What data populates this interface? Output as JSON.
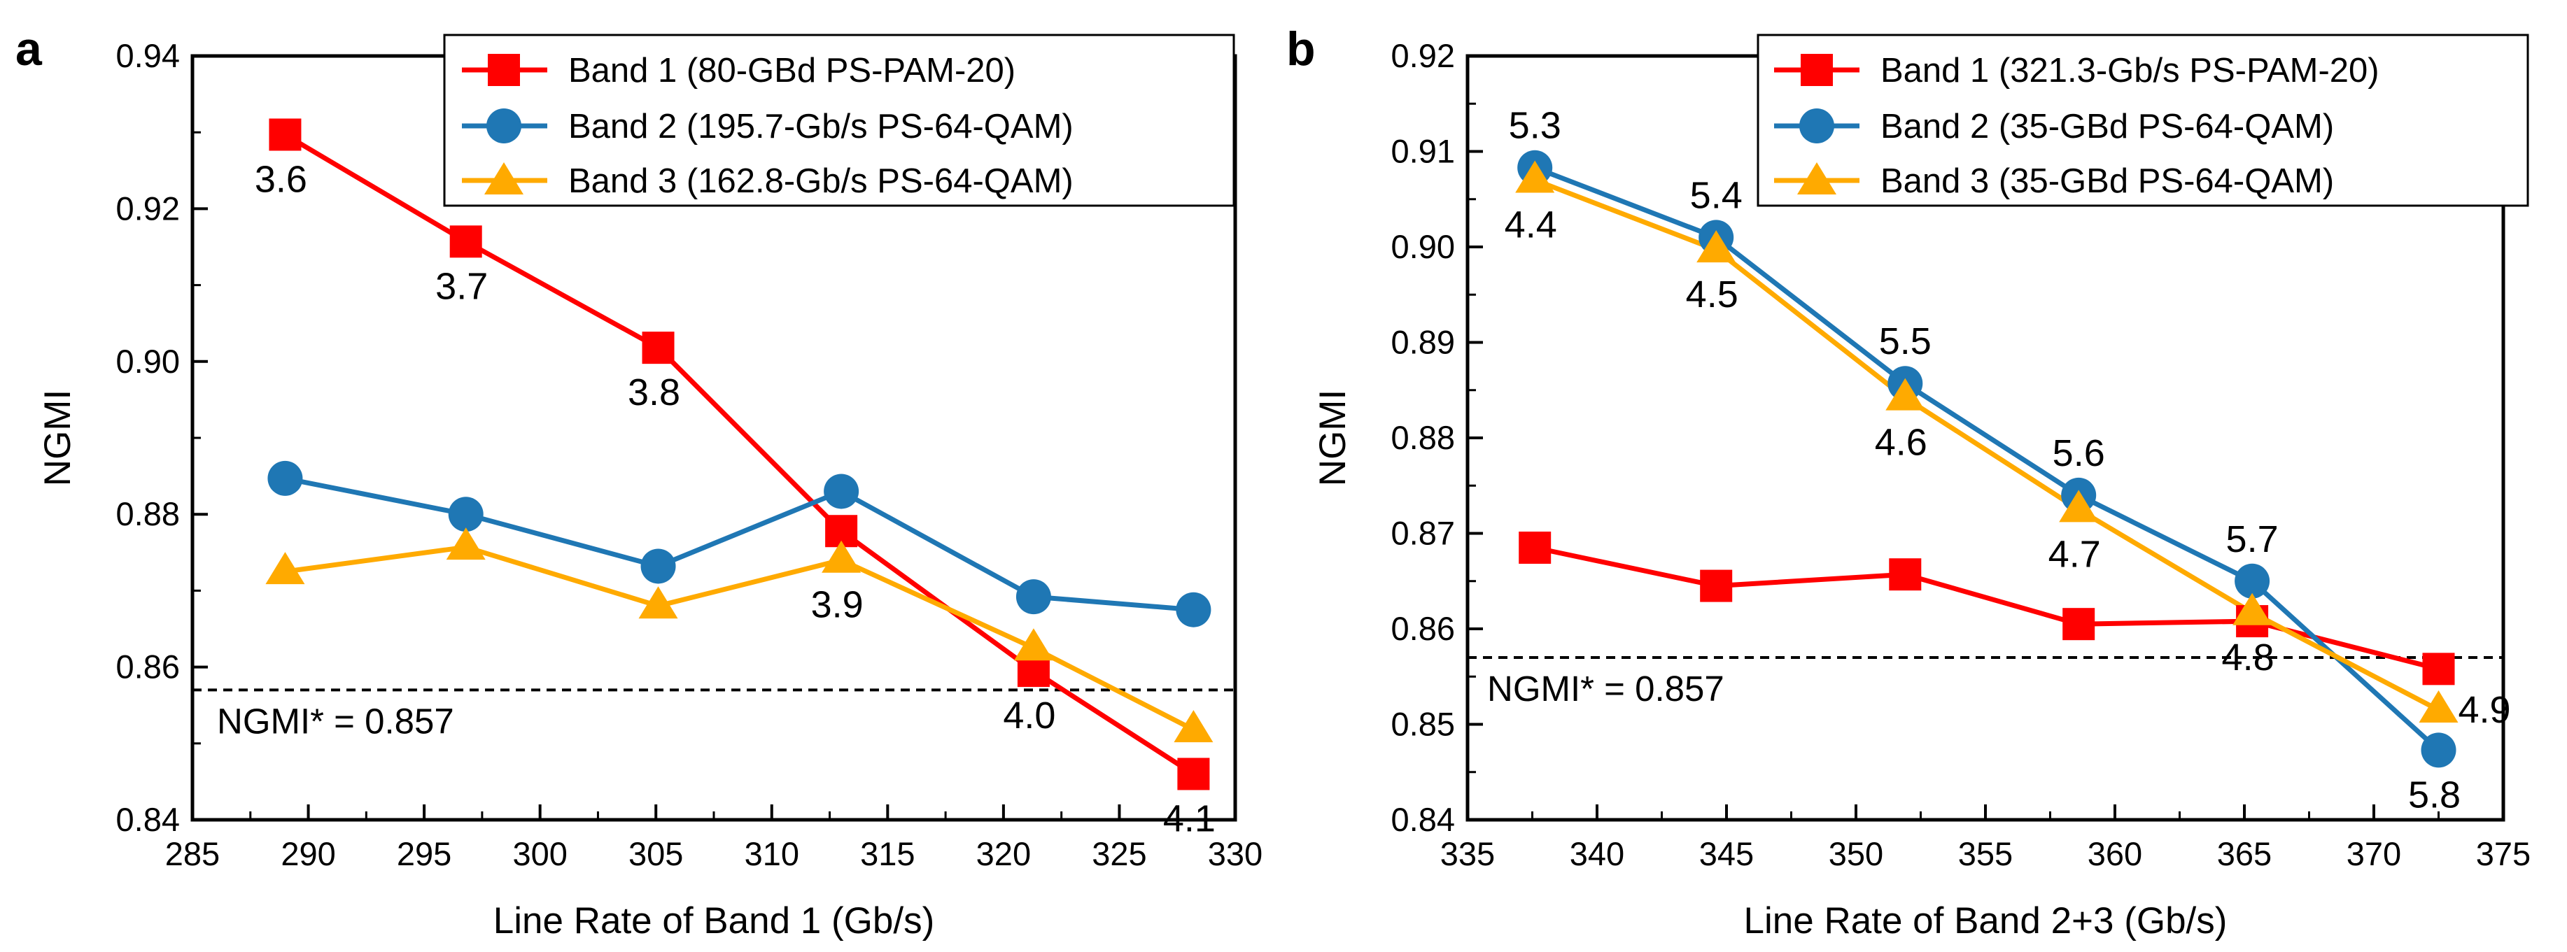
{
  "chart_data": [
    {
      "type": "line",
      "panel": "a",
      "xlabel": "Line Rate of Band 1 (Gb/s)",
      "ylabel": "NGMI",
      "xlim": [
        285,
        330
      ],
      "ylim": [
        0.84,
        0.94
      ],
      "xticks": [
        285,
        290,
        295,
        300,
        305,
        310,
        315,
        320,
        325,
        330
      ],
      "yticks": [
        0.84,
        0.86,
        0.88,
        0.9,
        0.92,
        0.94
      ],
      "ytick_labels": [
        "0.84",
        "0.86",
        "0.88",
        "0.90",
        "0.92",
        "0.94"
      ],
      "legend_position": "top-right",
      "threshold": {
        "value": 0.857,
        "label": "NGMI* = 0.857"
      },
      "series": [
        {
          "name": "Band 1 (80-GBd PS-PAM-20)",
          "color": "#ff0000",
          "marker": "square",
          "x": [
            289.0,
            296.8,
            305.1,
            313.0,
            321.3,
            328.2
          ],
          "y": [
            0.9297,
            0.9157,
            0.9018,
            0.8778,
            0.8595,
            0.846
          ]
        },
        {
          "name": "Band 2 (195.7-Gb/s PS-64-QAM)",
          "color": "#1f77b4",
          "marker": "circle",
          "x": [
            289.0,
            296.8,
            305.1,
            313.0,
            321.3,
            328.2
          ],
          "y": [
            0.8847,
            0.88,
            0.8732,
            0.883,
            0.8692,
            0.8675
          ]
        },
        {
          "name": "Band 3 (162.8-Gb/s PS-64-QAM)",
          "color": "#ffaa00",
          "marker": "triangle",
          "x": [
            289.0,
            296.8,
            305.1,
            313.0,
            321.3,
            328.2
          ],
          "y": [
            0.8725,
            0.8757,
            0.868,
            0.874,
            0.8625,
            0.8518
          ]
        }
      ],
      "annotations": [
        {
          "text": "3.6",
          "x": 289.0,
          "y": 0.9297
        },
        {
          "text": "3.7",
          "x": 296.8,
          "y": 0.9157
        },
        {
          "text": "3.8",
          "x": 305.1,
          "y": 0.9018
        },
        {
          "text": "3.9",
          "x": 313.0,
          "y": 0.874
        },
        {
          "text": "4.0",
          "x": 321.3,
          "y": 0.8595
        },
        {
          "text": "4.1",
          "x": 328.2,
          "y": 0.846
        }
      ]
    },
    {
      "type": "line",
      "panel": "b",
      "xlabel": "Line Rate of Band 2+3 (Gb/s)",
      "ylabel": "NGMI",
      "xlim": [
        335,
        375
      ],
      "ylim": [
        0.84,
        0.92
      ],
      "xticks": [
        335,
        340,
        345,
        350,
        355,
        360,
        365,
        370,
        375
      ],
      "yticks": [
        0.84,
        0.85,
        0.86,
        0.87,
        0.88,
        0.89,
        0.9,
        0.91,
        0.92
      ],
      "ytick_labels": [
        "0.84",
        "0.85",
        "0.86",
        "0.87",
        "0.88",
        "0.89",
        "0.90",
        "0.91",
        "0.92"
      ],
      "legend_position": "top-right",
      "threshold": {
        "value": 0.857,
        "label": "NGMI* = 0.857"
      },
      "series": [
        {
          "name": "Band 1 (321.3-Gb/s PS-PAM-20)",
          "color": "#ff0000",
          "marker": "square",
          "x": [
            337.6,
            344.6,
            351.9,
            358.6,
            365.3,
            372.5
          ],
          "y": [
            0.8685,
            0.8645,
            0.8657,
            0.8605,
            0.8608,
            0.8558
          ]
        },
        {
          "name": "Band 2 (35-GBd PS-64-QAM)",
          "color": "#1f77b4",
          "marker": "circle",
          "x": [
            337.6,
            344.6,
            351.9,
            358.6,
            365.3,
            372.5
          ],
          "y": [
            0.9083,
            0.901,
            0.8857,
            0.874,
            0.865,
            0.8473
          ]
        },
        {
          "name": "Band 3 (35-GBd PS-64-QAM)",
          "color": "#ffaa00",
          "marker": "triangle",
          "x": [
            337.6,
            344.6,
            351.9,
            358.6,
            365.3,
            372.5
          ],
          "y": [
            0.907,
            0.8997,
            0.8842,
            0.8725,
            0.8617,
            0.8515
          ]
        }
      ],
      "annotations": [
        {
          "text": "5.3",
          "x": 337.6,
          "y": 0.9083,
          "pos": "above"
        },
        {
          "text": "4.4",
          "x": 337.6,
          "y": 0.907,
          "pos": "below"
        },
        {
          "text": "5.4",
          "x": 344.6,
          "y": 0.901,
          "pos": "above"
        },
        {
          "text": "4.5",
          "x": 344.6,
          "y": 0.8997,
          "pos": "below"
        },
        {
          "text": "5.5",
          "x": 351.9,
          "y": 0.8857,
          "pos": "above"
        },
        {
          "text": "4.6",
          "x": 351.9,
          "y": 0.8842,
          "pos": "below"
        },
        {
          "text": "5.6",
          "x": 358.6,
          "y": 0.874,
          "pos": "above"
        },
        {
          "text": "4.7",
          "x": 358.6,
          "y": 0.8725,
          "pos": "below"
        },
        {
          "text": "5.7",
          "x": 365.3,
          "y": 0.865,
          "pos": "above"
        },
        {
          "text": "4.8",
          "x": 365.3,
          "y": 0.8617,
          "pos": "below"
        },
        {
          "text": "4.9",
          "x": 372.5,
          "y": 0.8515,
          "pos": "right"
        },
        {
          "text": "5.8",
          "x": 372.5,
          "y": 0.8473,
          "pos": "below"
        }
      ]
    }
  ]
}
